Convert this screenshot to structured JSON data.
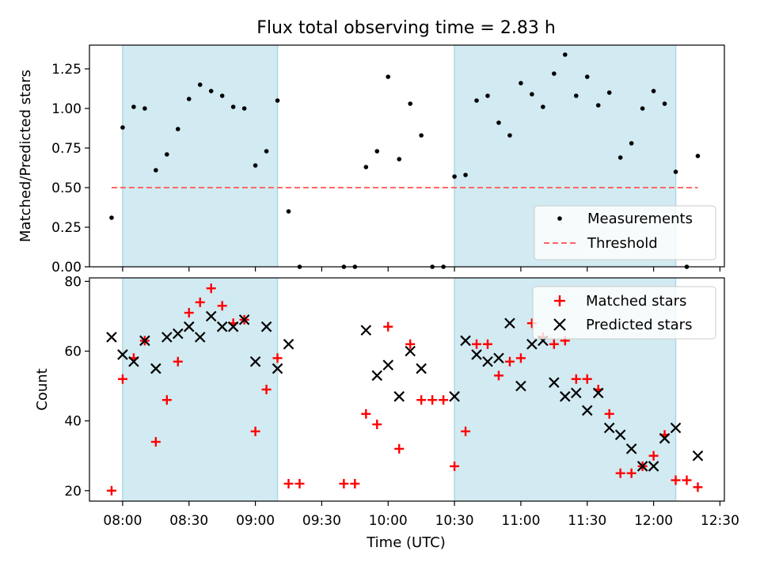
{
  "figure": {
    "title": "Flux total observing time = 2.83 h",
    "xlabel": "Time (UTC)",
    "x_ticks": [
      "08:00",
      "08:30",
      "09:00",
      "09:30",
      "10:00",
      "10:30",
      "11:00",
      "11:30",
      "12:00",
      "12:30"
    ]
  },
  "colors": {
    "shade": "#add8e6",
    "measurement": "#000000",
    "threshold": "#ff6666",
    "matched": "#ff0000",
    "predicted": "#000000"
  },
  "chart_data": [
    {
      "type": "scatter",
      "title": "Flux total observing time = 2.83 h",
      "xlabel": "",
      "ylabel": "Matched/Predicted stars",
      "xlim": [
        "07:45",
        "12:32"
      ],
      "ylim": [
        0,
        1.4
      ],
      "y_ticks": [
        "0.00",
        "0.25",
        "0.50",
        "0.75",
        "1.00",
        "1.25"
      ],
      "shaded_intervals": [
        [
          "08:00",
          "09:10"
        ],
        [
          "10:30",
          "12:10"
        ]
      ],
      "legend": {
        "placement": "lower right",
        "entries": [
          "Measurements",
          "Threshold"
        ]
      },
      "series": [
        {
          "name": "Measurements",
          "marker": "dot",
          "points": [
            [
              "07:55",
              0.31
            ],
            [
              "08:00",
              0.88
            ],
            [
              "08:05",
              1.01
            ],
            [
              "08:10",
              1.0
            ],
            [
              "08:15",
              0.61
            ],
            [
              "08:20",
              0.71
            ],
            [
              "08:25",
              0.87
            ],
            [
              "08:30",
              1.06
            ],
            [
              "08:35",
              1.15
            ],
            [
              "08:40",
              1.11
            ],
            [
              "08:45",
              1.08
            ],
            [
              "08:50",
              1.01
            ],
            [
              "08:55",
              1.0
            ],
            [
              "09:00",
              0.64
            ],
            [
              "09:05",
              0.73
            ],
            [
              "09:10",
              1.05
            ],
            [
              "09:15",
              0.35
            ],
            [
              "09:20",
              0.0
            ],
            [
              "09:40",
              0.0
            ],
            [
              "09:45",
              0.0
            ],
            [
              "09:50",
              0.63
            ],
            [
              "09:55",
              0.73
            ],
            [
              "10:00",
              1.2
            ],
            [
              "10:05",
              0.68
            ],
            [
              "10:10",
              1.03
            ],
            [
              "10:15",
              0.83
            ],
            [
              "10:20",
              0.0
            ],
            [
              "10:25",
              0.0
            ],
            [
              "10:30",
              0.57
            ],
            [
              "10:35",
              0.58
            ],
            [
              "10:40",
              1.05
            ],
            [
              "10:45",
              1.08
            ],
            [
              "10:50",
              0.91
            ],
            [
              "10:55",
              0.83
            ],
            [
              "11:00",
              1.16
            ],
            [
              "11:05",
              1.09
            ],
            [
              "11:10",
              1.01
            ],
            [
              "11:15",
              1.22
            ],
            [
              "11:20",
              1.34
            ],
            [
              "11:25",
              1.08
            ],
            [
              "11:30",
              1.2
            ],
            [
              "11:35",
              1.02
            ],
            [
              "11:40",
              1.1
            ],
            [
              "11:45",
              0.69
            ],
            [
              "11:50",
              0.78
            ],
            [
              "11:55",
              1.0
            ],
            [
              "12:00",
              1.11
            ],
            [
              "12:05",
              1.03
            ],
            [
              "12:10",
              0.6
            ],
            [
              "12:15",
              0.0
            ],
            [
              "12:20",
              0.7
            ]
          ]
        },
        {
          "name": "Threshold",
          "type": "line",
          "style": "dashed",
          "points": [
            [
              "07:55",
              0.5
            ],
            [
              "12:20",
              0.5
            ]
          ]
        }
      ]
    },
    {
      "type": "scatter",
      "title": "",
      "xlabel": "Time (UTC)",
      "ylabel": "Count",
      "xlim": [
        "07:45",
        "12:32"
      ],
      "ylim": [
        17,
        81
      ],
      "y_ticks": [
        "20",
        "40",
        "60",
        "80"
      ],
      "shaded_intervals": [
        [
          "08:00",
          "09:10"
        ],
        [
          "10:30",
          "12:10"
        ]
      ],
      "legend": {
        "placement": "upper right",
        "entries": [
          "Matched stars",
          "Predicted stars"
        ]
      },
      "series": [
        {
          "name": "Matched stars",
          "marker": "plus",
          "points": [
            [
              "07:55",
              20
            ],
            [
              "08:00",
              52
            ],
            [
              "08:05",
              58
            ],
            [
              "08:10",
              63
            ],
            [
              "08:15",
              34
            ],
            [
              "08:20",
              46
            ],
            [
              "08:25",
              57
            ],
            [
              "08:30",
              71
            ],
            [
              "08:35",
              74
            ],
            [
              "08:40",
              78
            ],
            [
              "08:45",
              73
            ],
            [
              "08:50",
              68
            ],
            [
              "08:55",
              69
            ],
            [
              "09:00",
              37
            ],
            [
              "09:05",
              49
            ],
            [
              "09:10",
              58
            ],
            [
              "09:15",
              22
            ],
            [
              "09:20",
              22
            ],
            [
              "09:40",
              22
            ],
            [
              "09:45",
              22
            ],
            [
              "09:50",
              42
            ],
            [
              "09:55",
              39
            ],
            [
              "10:00",
              67
            ],
            [
              "10:05",
              32
            ],
            [
              "10:10",
              62
            ],
            [
              "10:15",
              46
            ],
            [
              "10:20",
              46
            ],
            [
              "10:25",
              46
            ],
            [
              "10:30",
              27
            ],
            [
              "10:35",
              37
            ],
            [
              "10:40",
              62
            ],
            [
              "10:45",
              62
            ],
            [
              "10:50",
              53
            ],
            [
              "10:55",
              57
            ],
            [
              "11:00",
              58
            ],
            [
              "11:05",
              68
            ],
            [
              "11:10",
              64
            ],
            [
              "11:15",
              62
            ],
            [
              "11:20",
              63
            ],
            [
              "11:25",
              52
            ],
            [
              "11:30",
              52
            ],
            [
              "11:35",
              49
            ],
            [
              "11:40",
              42
            ],
            [
              "11:45",
              25
            ],
            [
              "11:50",
              25
            ],
            [
              "11:55",
              27
            ],
            [
              "12:00",
              30
            ],
            [
              "12:05",
              36
            ],
            [
              "12:10",
              23
            ],
            [
              "12:15",
              23
            ],
            [
              "12:20",
              21
            ]
          ]
        },
        {
          "name": "Predicted stars",
          "marker": "x",
          "points": [
            [
              "07:55",
              64
            ],
            [
              "08:00",
              59
            ],
            [
              "08:05",
              57
            ],
            [
              "08:10",
              63
            ],
            [
              "08:15",
              55
            ],
            [
              "08:20",
              64
            ],
            [
              "08:25",
              65
            ],
            [
              "08:30",
              67
            ],
            [
              "08:35",
              64
            ],
            [
              "08:40",
              70
            ],
            [
              "08:45",
              67
            ],
            [
              "08:50",
              67
            ],
            [
              "08:55",
              69
            ],
            [
              "09:00",
              57
            ],
            [
              "09:05",
              67
            ],
            [
              "09:10",
              55
            ],
            [
              "09:15",
              62
            ],
            [
              "09:50",
              66
            ],
            [
              "09:55",
              53
            ],
            [
              "10:00",
              56
            ],
            [
              "10:05",
              47
            ],
            [
              "10:10",
              60
            ],
            [
              "10:15",
              55
            ],
            [
              "10:30",
              47
            ],
            [
              "10:35",
              63
            ],
            [
              "10:40",
              59
            ],
            [
              "10:45",
              57
            ],
            [
              "10:50",
              58
            ],
            [
              "10:55",
              68
            ],
            [
              "11:00",
              50
            ],
            [
              "11:05",
              62
            ],
            [
              "11:10",
              63
            ],
            [
              "11:15",
              51
            ],
            [
              "11:20",
              47
            ],
            [
              "11:25",
              48
            ],
            [
              "11:30",
              43
            ],
            [
              "11:35",
              48
            ],
            [
              "11:40",
              38
            ],
            [
              "11:45",
              36
            ],
            [
              "11:50",
              32
            ],
            [
              "11:55",
              27
            ],
            [
              "12:00",
              27
            ],
            [
              "12:05",
              35
            ],
            [
              "12:10",
              38
            ],
            [
              "12:20",
              30
            ]
          ]
        }
      ]
    }
  ]
}
